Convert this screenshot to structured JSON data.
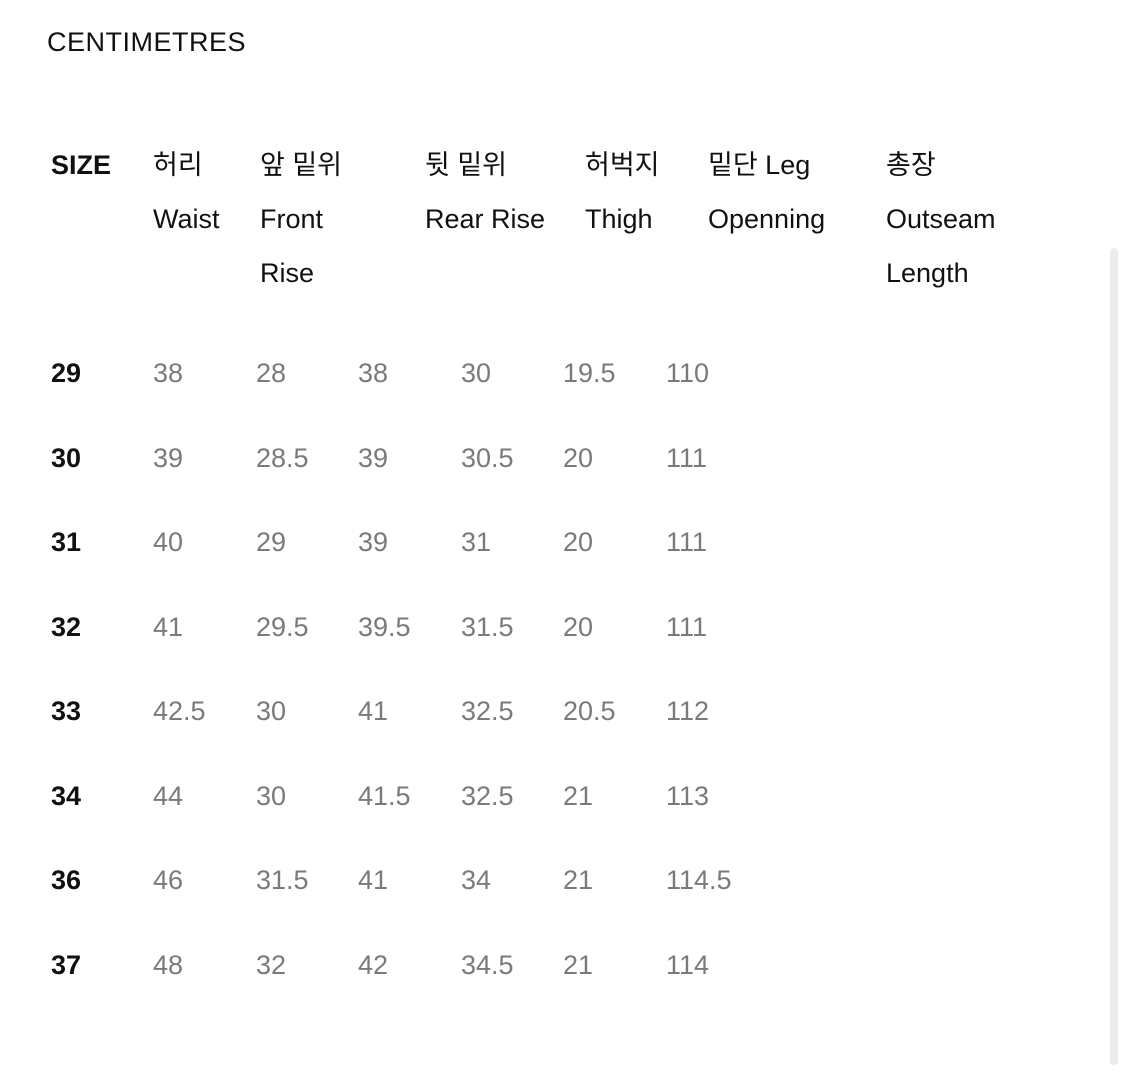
{
  "title": "CENTIMETRES",
  "headers": [
    {
      "label": "SIZE"
    },
    {
      "label": "허리\nWaist"
    },
    {
      "label": "앞 밑위\nFront\nRise"
    },
    {
      "label": "뒷 밑위\nRear Rise"
    },
    {
      "label": "허벅지\nThigh"
    },
    {
      "label": "밑단 Leg\nOpenning"
    },
    {
      "label": "총장\nOutseam\nLength"
    }
  ],
  "rows": [
    [
      "29",
      "38",
      "28",
      "38",
      "30",
      "19.5",
      "110"
    ],
    [
      "30",
      "39",
      "28.5",
      "39",
      "30.5",
      "20",
      "111"
    ],
    [
      "31",
      "40",
      "29",
      "39",
      "31",
      "20",
      "111"
    ],
    [
      "32",
      "41",
      "29.5",
      "39.5",
      "31.5",
      "20",
      "111"
    ],
    [
      "33",
      "42.5",
      "30",
      "41",
      "32.5",
      "20.5",
      "112"
    ],
    [
      "34",
      "44",
      "30",
      "41.5",
      "32.5",
      "21",
      "113"
    ],
    [
      "36",
      "46",
      "31.5",
      "41",
      "34",
      "21",
      "114.5"
    ],
    [
      "37",
      "48",
      "32",
      "42",
      "34.5",
      "21",
      "114"
    ]
  ]
}
